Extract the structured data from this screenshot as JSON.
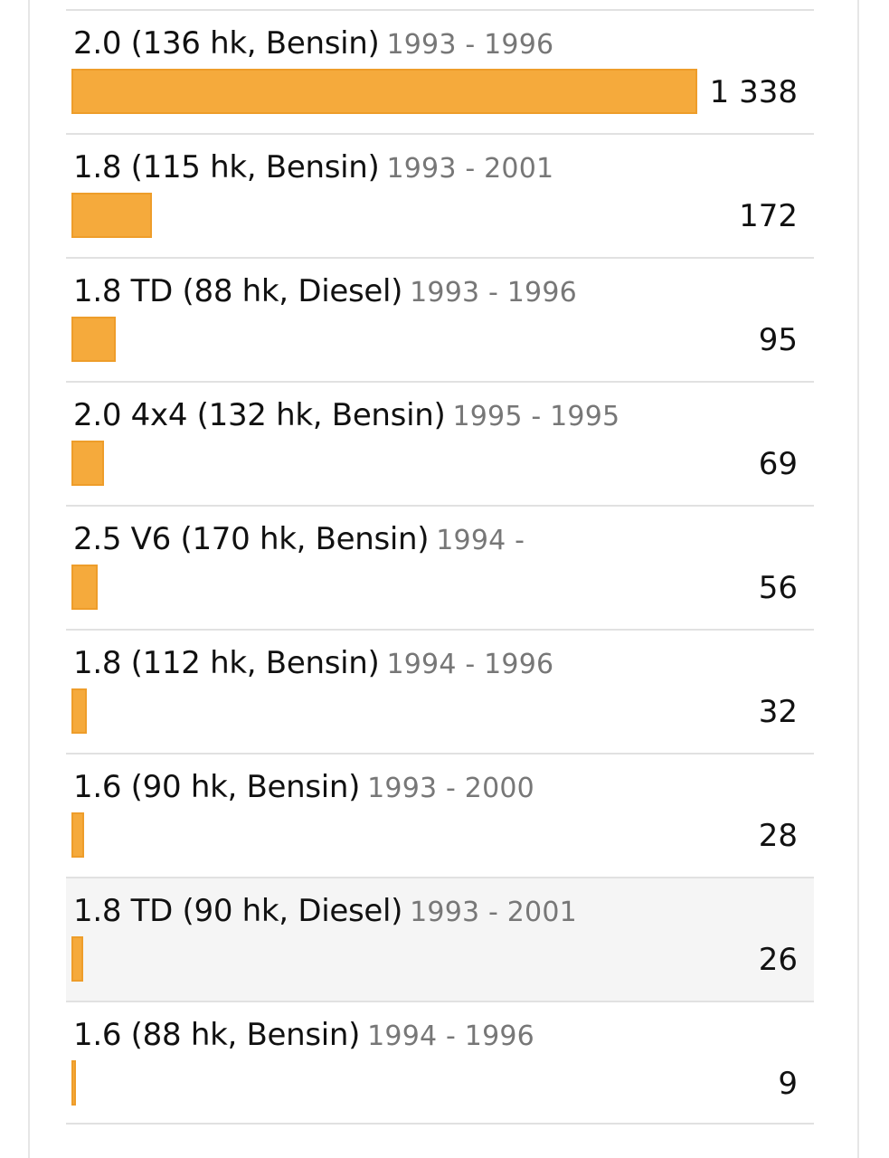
{
  "chart_data": {
    "type": "bar",
    "orientation": "horizontal",
    "max_value": 1338,
    "rows": [
      {
        "label": "2.0 (136 hk, Bensin)",
        "years": "1993 - 1996",
        "value": 1338,
        "value_text": "1 338"
      },
      {
        "label": "1.8 (115 hk, Bensin)",
        "years": "1993 - 2001",
        "value": 172,
        "value_text": "172"
      },
      {
        "label": "1.8 TD (88 hk, Diesel)",
        "years": "1993 - 1996",
        "value": 95,
        "value_text": "95"
      },
      {
        "label": "2.0 4x4 (132 hk, Bensin)",
        "years": "1995 - 1995",
        "value": 69,
        "value_text": "69"
      },
      {
        "label": "2.5 V6 (170 hk, Bensin)",
        "years": "1994 -",
        "value": 56,
        "value_text": "56"
      },
      {
        "label": "1.8 (112 hk, Bensin)",
        "years": "1994 - 1996",
        "value": 32,
        "value_text": "32"
      },
      {
        "label": "1.6 (90 hk, Bensin)",
        "years": "1993 - 2000",
        "value": 28,
        "value_text": "28"
      },
      {
        "label": "1.8 TD (90 hk, Diesel)",
        "years": "1993 - 2001",
        "value": 26,
        "value_text": "26",
        "highlighted": true
      },
      {
        "label": "1.6 (88 hk, Bensin)",
        "years": "1994 - 1996",
        "value": 9,
        "value_text": "9"
      }
    ]
  },
  "colors": {
    "bar_fill": "#f5aa3c",
    "bar_border": "#ee9d2a",
    "highlight_row": "#f5f5f5"
  }
}
